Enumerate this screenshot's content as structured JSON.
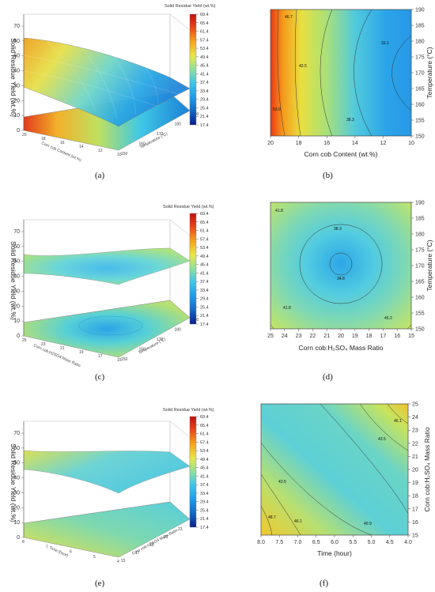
{
  "colorbar": {
    "title": "Solid Residue Yield  (wt.%)",
    "ticks": [
      "69.4",
      "65.4",
      "61.4",
      "57.4",
      "53.4",
      "49.4",
      "45.4",
      "41.4",
      "37.4",
      "33.4",
      "29.4",
      "25.4",
      "21.4",
      "17.4"
    ],
    "range": [
      17.4,
      69.4
    ],
    "colors": [
      "#0a1f8a",
      "#1565c0",
      "#1e9be8",
      "#3fc6e8",
      "#8ee0a0",
      "#e6e84a",
      "#f7a41c",
      "#e8471a",
      "#c01010"
    ]
  },
  "chart_data": [
    {
      "id": "a",
      "type": "surface3d",
      "caption": "(a)",
      "ylabel": "Solid Residue Yield (wt.%)",
      "xlabel": "Corn cob Content (wt.%)",
      "zlabel": "Temperature (°C)",
      "zticks": [
        "0",
        "10",
        "20",
        "30",
        "40",
        "50",
        "60",
        "70"
      ],
      "xticks": [
        "20",
        "18",
        "16",
        "14",
        "12",
        "10"
      ],
      "yticks": [
        "150",
        "160",
        "170",
        "180",
        "190"
      ],
      "range_vertical": [
        0,
        70
      ],
      "surface_range": [
        33,
        60
      ],
      "surface_at_corners": {
        "back": 60,
        "left": 52,
        "right": 36,
        "front": 40
      }
    },
    {
      "id": "b",
      "type": "contour",
      "caption": "(b)",
      "xlabel": "Corn cob Content (wt.%)",
      "ylabel": "Temperature (°C)",
      "xticks": [
        "20",
        "18",
        "16",
        "14",
        "12",
        "10"
      ],
      "yticks": [
        "150",
        "155",
        "160",
        "165",
        "170",
        "175",
        "180",
        "185",
        "190"
      ],
      "xlim": [
        20,
        10
      ],
      "ylim": [
        150,
        190
      ],
      "contour_labels": [
        "46.7",
        "43.5",
        "40.3",
        "38.3",
        "33.1",
        "53.9"
      ]
    },
    {
      "id": "c",
      "type": "surface3d",
      "caption": "(c)",
      "ylabel": "Solid Residue Yield (wt.%)",
      "xlabel": "Corn cob:H2SO4 Mass Ratio",
      "zlabel": "Temperature (°C)",
      "zticks": [
        "0",
        "10",
        "20",
        "30",
        "40",
        "50",
        "60",
        "70"
      ],
      "xticks": [
        "25",
        "23",
        "21",
        "19",
        "17",
        "15"
      ],
      "yticks": [
        "150",
        "160",
        "170",
        "180",
        "190"
      ],
      "range_vertical": [
        0,
        70
      ],
      "surface_range": [
        34,
        44
      ]
    },
    {
      "id": "d",
      "type": "contour",
      "caption": "(d)",
      "xlabel": "Corn cob:H₂SO₄ Mass Ratio",
      "ylabel": "Temperature (°C)",
      "xticks": [
        "25",
        "24",
        "23",
        "22",
        "21",
        "20",
        "19",
        "18",
        "17",
        "16",
        "15"
      ],
      "yticks": [
        "150",
        "155",
        "160",
        "165",
        "170",
        "175",
        "180",
        "185",
        "190"
      ],
      "xlim": [
        25,
        15
      ],
      "ylim": [
        150,
        190
      ],
      "contour_labels": [
        "41.8",
        "38.3",
        "34.8",
        "41.8",
        "45.2"
      ]
    },
    {
      "id": "e",
      "type": "surface3d",
      "caption": "(e)",
      "ylabel": "Solid Residue Yield (wt.%)",
      "xlabel": "Time (hour)",
      "zlabel": "Corn cob:H2SO4 Mass Ratio",
      "zticks": [
        "0",
        "10",
        "20",
        "30",
        "40",
        "50",
        "60",
        "70"
      ],
      "xticks": [
        "8",
        "7",
        "6",
        "5",
        "4"
      ],
      "yticks": [
        "15",
        "17",
        "19",
        "21",
        "23",
        "25"
      ],
      "range_vertical": [
        0,
        70
      ],
      "surface_range": [
        40,
        50
      ]
    },
    {
      "id": "f",
      "type": "contour",
      "caption": "(f)",
      "xlabel": "Time (hour)",
      "ylabel": "Corn cob:H₂SO₄ Mass Ratio",
      "xticks": [
        "8.0",
        "7.5",
        "7.0",
        "6.5",
        "6.0",
        "5.5",
        "5.0",
        "4.5",
        "4.0"
      ],
      "yticks": [
        "15",
        "16",
        "17",
        "18",
        "19",
        "20",
        "21",
        "22",
        "23",
        "24",
        "25"
      ],
      "xlim": [
        8,
        4
      ],
      "ylim": [
        15,
        25
      ],
      "contour_labels": [
        "46.1",
        "43.5",
        "43.5",
        "46.1",
        "48.7",
        "40.9"
      ]
    }
  ]
}
